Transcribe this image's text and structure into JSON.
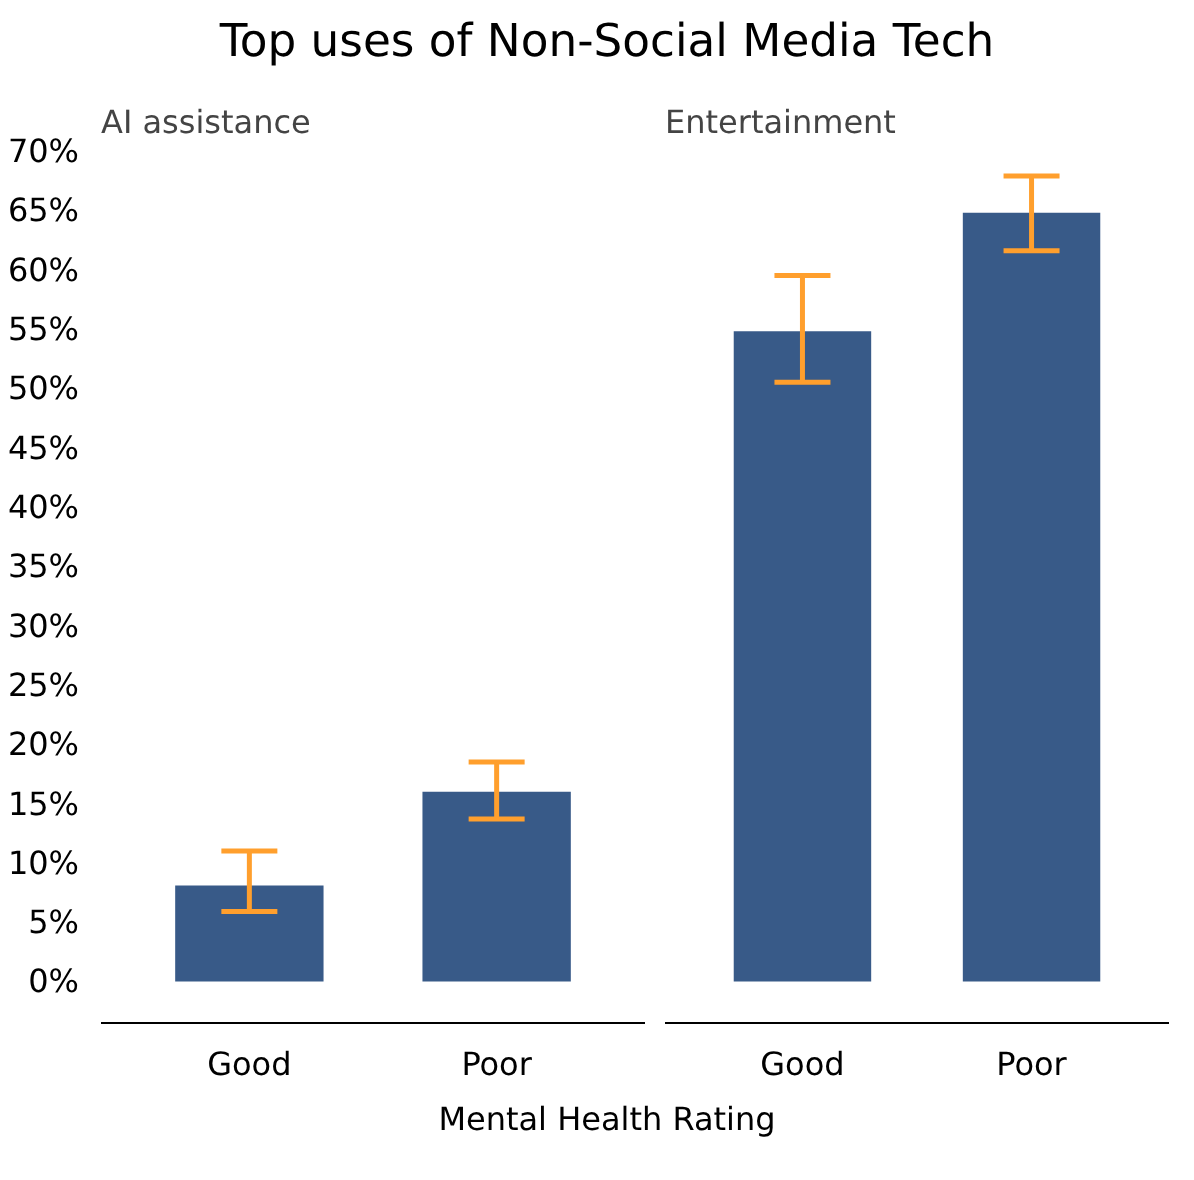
{
  "chart_data": [
    {
      "type": "bar",
      "title": "Top uses of Non-Social Media Tech",
      "subtitle": "AI assistance",
      "xlabel": "Mental Health Rating",
      "categories": [
        "Good",
        "Poor"
      ],
      "values": [
        8.1,
        16.0
      ],
      "errors": [
        [
          5.9,
          11.0
        ],
        [
          13.7,
          18.5
        ]
      ],
      "color": "#385a88",
      "ylim": [
        -3.5,
        70
      ],
      "yticks": [
        {
          "value": 0,
          "label": "0%"
        },
        {
          "value": 5,
          "label": "5%"
        },
        {
          "value": 10,
          "label": "10%"
        },
        {
          "value": 15,
          "label": "15%"
        },
        {
          "value": 20,
          "label": "20%"
        },
        {
          "value": 25,
          "label": "25%"
        },
        {
          "value": 30,
          "label": "30%"
        },
        {
          "value": 35,
          "label": "35%"
        },
        {
          "value": 40,
          "label": "40%"
        },
        {
          "value": 45,
          "label": "45%"
        },
        {
          "value": 50,
          "label": "50%"
        },
        {
          "value": 55,
          "label": "55%"
        },
        {
          "value": 60,
          "label": "60%"
        },
        {
          "value": 65,
          "label": "65%"
        },
        {
          "value": 70,
          "label": "70%"
        }
      ],
      "grid": false
    },
    {
      "type": "bar",
      "subtitle": "Entertainment",
      "categories": [
        "Good",
        "Poor"
      ],
      "values": [
        54.8,
        64.8
      ],
      "errors": [
        [
          50.5,
          59.5
        ],
        [
          61.6,
          67.9
        ]
      ],
      "color": "#385a88",
      "ylim": [
        -3.5,
        70
      ],
      "tick_labels": "x",
      "grid": false
    }
  ]
}
